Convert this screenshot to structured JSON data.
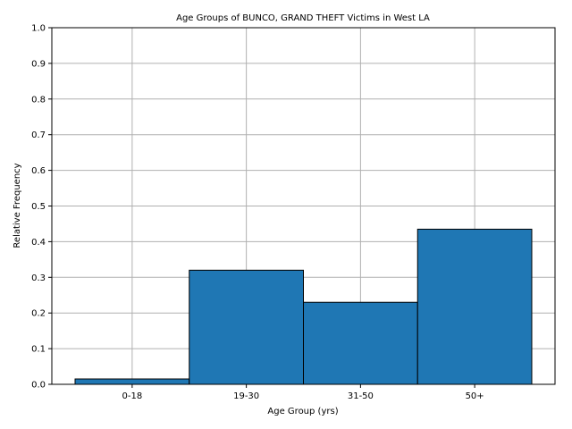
{
  "chart_data": {
    "type": "bar",
    "title": "Age Groups of BUNCO, GRAND THEFT Victims in West LA",
    "xlabel": "Age Group (yrs)",
    "ylabel": "Relative Frequency",
    "categories": [
      "0-18",
      "19-30",
      "31-50",
      "50+"
    ],
    "values": [
      0.015,
      0.32,
      0.23,
      0.435
    ],
    "ylim": [
      0,
      1.0
    ],
    "yticks": [
      "0.0",
      "0.1",
      "0.2",
      "0.3",
      "0.4",
      "0.5",
      "0.6",
      "0.7",
      "0.8",
      "0.9",
      "1.0"
    ],
    "grid": true,
    "bar_color": "#1f77b4",
    "edge_color": "#000000"
  }
}
